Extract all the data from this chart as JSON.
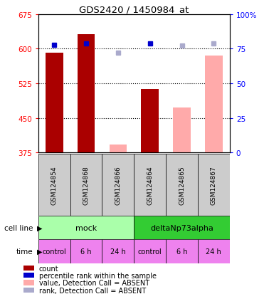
{
  "title": "GDS2420 / 1450984_at",
  "samples": [
    "GSM124854",
    "GSM124868",
    "GSM124866",
    "GSM124864",
    "GSM124865",
    "GSM124867"
  ],
  "count_values": [
    591,
    632,
    null,
    513,
    null,
    null
  ],
  "count_absent_values": [
    null,
    null,
    393,
    null,
    472,
    585
  ],
  "rank_values": [
    78,
    79,
    null,
    79,
    null,
    null
  ],
  "rank_absent_values": [
    null,
    null,
    72,
    null,
    77,
    79
  ],
  "ylim_left": [
    375,
    675
  ],
  "ylim_right": [
    0,
    100
  ],
  "yticks_left": [
    375,
    450,
    525,
    600,
    675
  ],
  "yticks_right": [
    0,
    25,
    50,
    75,
    100
  ],
  "time_labels": [
    "control",
    "6 h",
    "24 h",
    "control",
    "6 h",
    "24 h"
  ],
  "time_color": "#ee82ee",
  "bar_color_present": "#aa0000",
  "bar_color_absent": "#ffaaaa",
  "dot_color_present": "#0000cc",
  "dot_color_absent": "#aaaacc",
  "sample_bg_color": "#cccccc",
  "cell_line_mock_color": "#aaffaa",
  "cell_line_delta_color": "#33cc33",
  "legend_items": [
    {
      "color": "#aa0000",
      "label": "count"
    },
    {
      "color": "#0000cc",
      "label": "percentile rank within the sample"
    },
    {
      "color": "#ffaaaa",
      "label": "value, Detection Call = ABSENT"
    },
    {
      "color": "#aaaacc",
      "label": "rank, Detection Call = ABSENT"
    }
  ],
  "fig_width": 3.71,
  "fig_height": 4.14,
  "dpi": 100
}
